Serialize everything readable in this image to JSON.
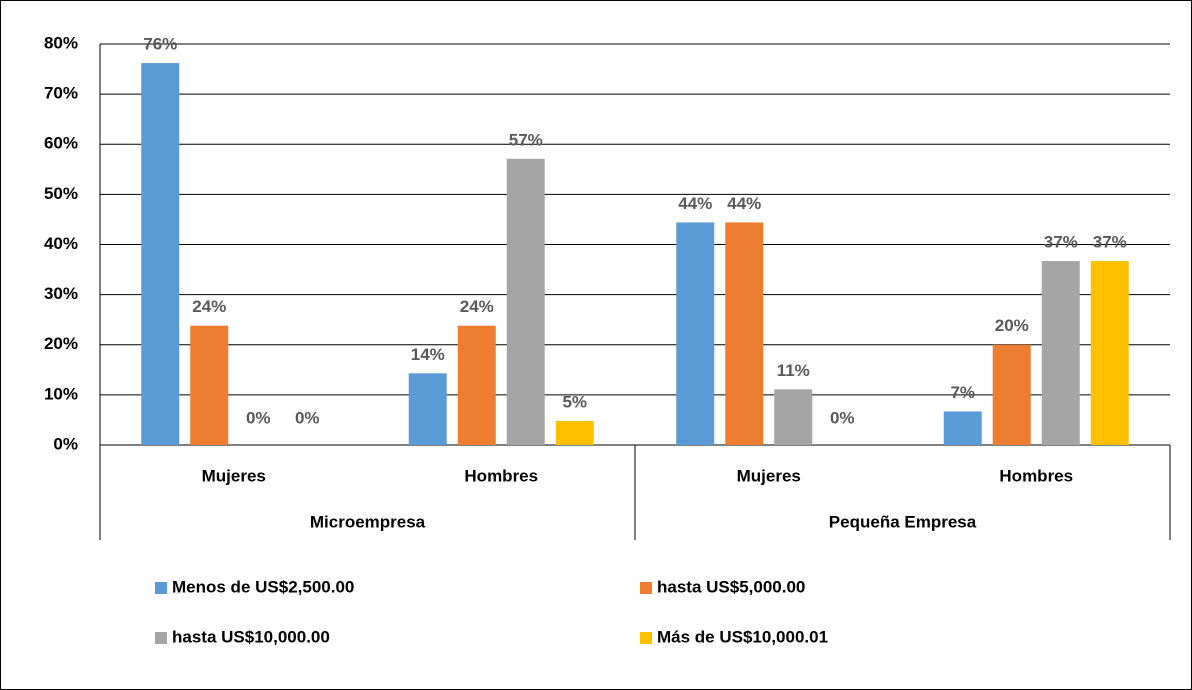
{
  "chart_data": {
    "type": "bar",
    "categories": [
      "Mujeres",
      "Hombres",
      "Mujeres",
      "Hombres"
    ],
    "groups": [
      "Microempresa",
      "Pequeña Empresa"
    ],
    "series": [
      {
        "name": "Menos de US$2,500.00",
        "color": "#5b9bd5",
        "values": [
          76.2,
          14.3,
          44.4,
          6.7
        ],
        "value_labels": [
          "76%",
          "14%",
          "44%",
          "7%"
        ]
      },
      {
        "name": "hasta US$5,000.00",
        "color": "#ed7d31",
        "values": [
          23.8,
          23.8,
          44.4,
          20
        ],
        "value_labels": [
          "24%",
          "24%",
          "44%",
          "20%"
        ]
      },
      {
        "name": "hasta US$10,000.00",
        "color": "#a5a5a5",
        "values": [
          0,
          57.1,
          11.1,
          36.7
        ],
        "value_labels": [
          "0%",
          "57%",
          "11%",
          "37%"
        ]
      },
      {
        "name": "Más de US$10,000.01",
        "color": "#ffc000",
        "values": [
          0,
          4.8,
          0,
          36.7
        ],
        "value_labels": [
          "0%",
          "5%",
          "0%",
          "37%"
        ]
      }
    ],
    "ylim": [
      0,
      80
    ],
    "yticks": [
      {
        "value": 0,
        "label": "0%"
      },
      {
        "value": 10,
        "label": "10%"
      },
      {
        "value": 20,
        "label": "20%"
      },
      {
        "value": 30,
        "label": "30%"
      },
      {
        "value": 40,
        "label": "40%"
      },
      {
        "value": 50,
        "label": "50%"
      },
      {
        "value": 60,
        "label": "60%"
      },
      {
        "value": 70,
        "label": "70%"
      },
      {
        "value": 80,
        "label": "80%"
      }
    ],
    "grid": true
  }
}
